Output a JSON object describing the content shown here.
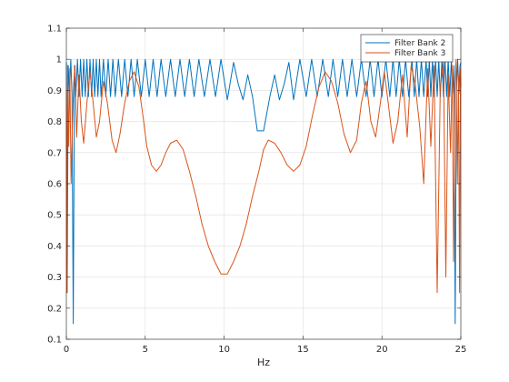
{
  "chart_data": {
    "type": "line",
    "title": "",
    "xlabel": "Hz",
    "ylabel": "",
    "xlim": [
      0,
      25
    ],
    "ylim": [
      0.1,
      1.1
    ],
    "xticks": [
      0,
      5,
      10,
      15,
      20,
      25
    ],
    "yticks": [
      0.1,
      0.2,
      0.3,
      0.4,
      0.5,
      0.6,
      0.7,
      0.8,
      0.9,
      1,
      1.1
    ],
    "xtick_labels": [
      "0",
      "5",
      "10",
      "15",
      "20",
      "25"
    ],
    "ytick_labels": [
      "0.1",
      "0.2",
      "0.3",
      "0.4",
      "0.5",
      "0.6",
      "0.7",
      "0.8",
      "0.9",
      "1",
      "1.1"
    ],
    "grid": true,
    "legend_position": "top-right",
    "series": [
      {
        "name": "Filter Bank 2",
        "color": "#0072bd",
        "x": [
          0,
          0.05,
          0.12,
          0.2,
          0.28,
          0.36,
          0.44,
          0.52,
          0.6,
          0.7,
          0.8,
          0.9,
          1.0,
          1.1,
          1.2,
          1.3,
          1.4,
          1.5,
          1.6,
          1.7,
          1.8,
          1.9,
          2.0,
          2.1,
          2.2,
          2.35,
          2.5,
          2.65,
          2.8,
          2.95,
          3.1,
          3.3,
          3.5,
          3.7,
          3.9,
          4.1,
          4.3,
          4.5,
          4.75,
          5.0,
          5.25,
          5.5,
          5.75,
          6.0,
          6.3,
          6.6,
          6.9,
          7.2,
          7.5,
          7.8,
          8.1,
          8.4,
          8.75,
          9.1,
          9.45,
          9.8,
          10.2,
          10.6,
          10.9,
          11.2,
          11.5,
          11.8,
          12.1,
          12.5,
          12.9,
          13.2,
          13.5,
          13.8,
          14.1,
          14.4,
          14.8,
          15.2,
          15.55,
          15.9,
          16.25,
          16.6,
          16.9,
          17.2,
          17.5,
          17.8,
          18.1,
          18.4,
          18.7,
          19.0,
          19.25,
          19.5,
          19.75,
          20.0,
          20.25,
          20.5,
          20.7,
          20.9,
          21.1,
          21.3,
          21.5,
          21.7,
          21.9,
          22.05,
          22.2,
          22.35,
          22.5,
          22.65,
          22.8,
          22.9,
          23.0,
          23.1,
          23.2,
          23.3,
          23.4,
          23.5,
          23.6,
          23.7,
          23.8,
          23.9,
          24.0,
          24.1,
          24.2,
          24.3,
          24.4,
          24.48,
          24.56,
          24.64,
          24.72,
          24.8,
          24.88,
          24.95,
          25.0
        ],
        "y": [
          0.99,
          0.25,
          0.98,
          0.89,
          1.0,
          0.89,
          0.15,
          0.98,
          0.88,
          1.0,
          0.88,
          1.0,
          0.88,
          1.0,
          0.88,
          1.0,
          0.88,
          1.0,
          0.88,
          1.0,
          0.88,
          1.0,
          0.88,
          1.0,
          0.88,
          1.0,
          0.88,
          1.0,
          0.88,
          1.0,
          0.88,
          1.0,
          0.88,
          1.0,
          0.88,
          1.0,
          0.88,
          1.0,
          0.88,
          1.0,
          0.88,
          1.0,
          0.88,
          1.0,
          0.88,
          1.0,
          0.88,
          1.0,
          0.88,
          1.0,
          0.88,
          1.0,
          0.88,
          1.0,
          0.88,
          1.0,
          0.87,
          0.99,
          0.92,
          0.87,
          0.95,
          0.88,
          0.77,
          0.77,
          0.88,
          0.95,
          0.87,
          0.92,
          0.99,
          0.87,
          1.0,
          0.88,
          1.0,
          0.88,
          1.0,
          0.88,
          1.0,
          0.88,
          1.0,
          0.88,
          1.0,
          0.88,
          1.0,
          0.88,
          1.0,
          0.88,
          1.0,
          0.88,
          1.0,
          0.88,
          1.0,
          0.88,
          1.0,
          0.88,
          1.0,
          0.88,
          1.0,
          0.88,
          1.0,
          0.88,
          1.0,
          0.88,
          1.0,
          0.88,
          1.0,
          0.88,
          1.0,
          0.88,
          1.0,
          0.88,
          1.0,
          0.88,
          1.0,
          0.88,
          1.0,
          0.88,
          1.0,
          0.88,
          1.0,
          0.89,
          0.98,
          0.15,
          0.89,
          1.0,
          0.89,
          0.98,
          0.99
        ]
      },
      {
        "name": "Filter Bank 3",
        "color": "#d95319",
        "x": [
          0,
          0.03,
          0.08,
          0.15,
          0.22,
          0.3,
          0.38,
          0.46,
          0.55,
          0.65,
          0.8,
          0.95,
          1.1,
          1.3,
          1.5,
          1.7,
          1.9,
          2.1,
          2.35,
          2.6,
          2.9,
          3.15,
          3.4,
          3.7,
          4.0,
          4.3,
          4.6,
          4.85,
          5.1,
          5.4,
          5.7,
          6.0,
          6.3,
          6.6,
          7.0,
          7.4,
          7.8,
          8.2,
          8.6,
          9.0,
          9.4,
          9.8,
          10.2,
          10.6,
          11.0,
          11.4,
          11.8,
          12.2,
          12.5,
          12.8,
          13.2,
          13.6,
          14.0,
          14.4,
          14.8,
          15.2,
          15.6,
          16.0,
          16.4,
          16.8,
          17.2,
          17.6,
          18.0,
          18.4,
          18.7,
          19.0,
          19.3,
          19.6,
          19.9,
          20.15,
          20.4,
          20.7,
          21.0,
          21.3,
          21.6,
          21.85,
          22.1,
          22.4,
          22.65,
          22.9,
          23.1,
          23.3,
          23.5,
          23.7,
          23.9,
          24.05,
          24.2,
          24.35,
          24.45,
          24.54,
          24.62,
          24.7,
          24.78,
          24.85,
          24.92,
          24.97,
          25.0
        ],
        "y": [
          0.91,
          0.25,
          0.98,
          0.72,
          0.97,
          0.6,
          0.78,
          0.92,
          0.98,
          0.75,
          0.95,
          0.8,
          0.73,
          0.86,
          0.96,
          0.86,
          0.75,
          0.8,
          0.93,
          0.86,
          0.74,
          0.7,
          0.76,
          0.86,
          0.93,
          0.96,
          0.91,
          0.82,
          0.72,
          0.66,
          0.64,
          0.66,
          0.7,
          0.73,
          0.74,
          0.71,
          0.64,
          0.56,
          0.47,
          0.4,
          0.35,
          0.31,
          0.31,
          0.35,
          0.4,
          0.47,
          0.56,
          0.64,
          0.71,
          0.74,
          0.73,
          0.7,
          0.66,
          0.64,
          0.66,
          0.72,
          0.82,
          0.91,
          0.96,
          0.93,
          0.86,
          0.76,
          0.7,
          0.74,
          0.86,
          0.93,
          0.8,
          0.75,
          0.86,
          0.96,
          0.86,
          0.73,
          0.8,
          0.95,
          0.75,
          0.98,
          0.92,
          0.78,
          0.6,
          0.97,
          0.72,
          0.98,
          0.25,
          0.91,
          0.99,
          0.3,
          0.95,
          0.7,
          0.98,
          0.35,
          0.9,
          1.0,
          0.6,
          0.95,
          0.25,
          0.97,
          0.91
        ]
      }
    ]
  }
}
